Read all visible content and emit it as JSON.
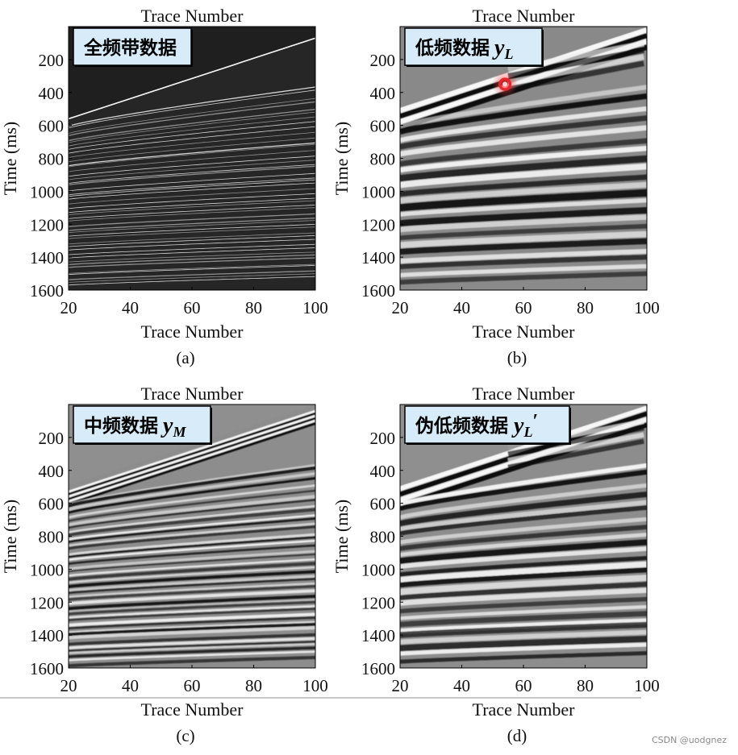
{
  "chart_data": [
    {
      "type": "heatmap",
      "panel": "(a)",
      "annotation": "全频带数据",
      "annotation_sub": "",
      "style": "full",
      "xlabel_top": "Trace Number",
      "xlabel": "Trace Number",
      "ylabel": "Time (ms)",
      "xlim": [
        20,
        100
      ],
      "ylim": [
        1600,
        0
      ],
      "xticks": [
        "20",
        "40",
        "60",
        "80",
        "100"
      ],
      "yticks": [
        "200",
        "400",
        "600",
        "800",
        "1000",
        "1200",
        "1400",
        "1600"
      ]
    },
    {
      "type": "heatmap",
      "panel": "(b)",
      "annotation": "低频数据",
      "annotation_sub": "L",
      "annotation_var": "y",
      "annotation_prime": false,
      "style": "low",
      "xlabel_top": "Trace Number",
      "xlabel": "Trace Number",
      "ylabel": "Time (ms)",
      "xlim": [
        20,
        100
      ],
      "ylim": [
        1600,
        0
      ],
      "xticks": [
        "20",
        "40",
        "60",
        "80",
        "100"
      ],
      "yticks": [
        "200",
        "400",
        "600",
        "800",
        "1000",
        "1200",
        "1400",
        "1600"
      ],
      "marker": {
        "x": 54,
        "y": 350,
        "color": "#e8262d"
      }
    },
    {
      "type": "heatmap",
      "panel": "(c)",
      "annotation": "中频数据",
      "annotation_sub": "M",
      "annotation_var": "y",
      "annotation_prime": false,
      "style": "mid",
      "xlabel_top": "Trace Number",
      "xlabel": "Trace Number",
      "ylabel": "Time (ms)",
      "xlim": [
        20,
        100
      ],
      "ylim": [
        1600,
        0
      ],
      "xticks": [
        "20",
        "40",
        "60",
        "80",
        "100"
      ],
      "yticks": [
        "200",
        "400",
        "600",
        "800",
        "1000",
        "1200",
        "1400",
        "1600"
      ]
    },
    {
      "type": "heatmap",
      "panel": "(d)",
      "annotation": "伪低频数据",
      "annotation_sub": "L",
      "annotation_var": "y",
      "annotation_prime": true,
      "style": "pseudo",
      "xlabel_top": "Trace Number",
      "xlabel": "Trace Number",
      "ylabel": "Time (ms)",
      "xlim": [
        20,
        100
      ],
      "ylim": [
        1600,
        0
      ],
      "xticks": [
        "20",
        "40",
        "60",
        "80",
        "100"
      ],
      "yticks": [
        "200",
        "400",
        "600",
        "800",
        "1000",
        "1200",
        "1400",
        "1600"
      ]
    }
  ],
  "watermark": "CSDN @uodgnez"
}
